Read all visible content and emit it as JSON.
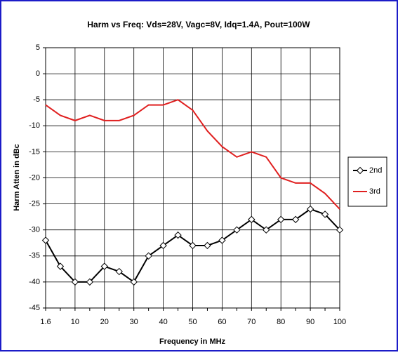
{
  "chart_data": {
    "type": "line",
    "title": "Harm vs Freq: Vds=28V, Vagc=8V, Idq=1.4A, Pout=100W",
    "x_label": "Frequency in MHz",
    "y_label": "Harm  Atten in dBc",
    "categories": [
      "1.6",
      null,
      "10",
      null,
      "20",
      null,
      "30",
      null,
      "40",
      null,
      "50",
      null,
      "60",
      null,
      "70",
      null,
      "80",
      null,
      "90",
      null,
      "100"
    ],
    "series": [
      {
        "name": "2nd",
        "color": "#000000",
        "marker": "diamond",
        "values": [
          -32,
          -37,
          -40,
          -40,
          -37,
          -38,
          -40,
          -35,
          -33,
          -31,
          -33,
          -33,
          -32,
          -30,
          -28,
          -30,
          -28,
          -28,
          -26,
          -27,
          -30
        ]
      },
      {
        "name": "3rd",
        "color": "#e02020",
        "marker": "none",
        "values": [
          -6,
          -8,
          -9,
          -8,
          -9,
          -9,
          -8,
          -6,
          -6,
          -5,
          -7,
          -11,
          -14,
          -16,
          -15,
          -16,
          -20,
          -21,
          -21,
          -23,
          -26
        ]
      }
    ],
    "ylim": [
      -45,
      5
    ],
    "yticks": [
      -45,
      -40,
      -35,
      -30,
      -25,
      -20,
      -15,
      -10,
      -5,
      0,
      5
    ],
    "grid": true,
    "legend": "right"
  }
}
